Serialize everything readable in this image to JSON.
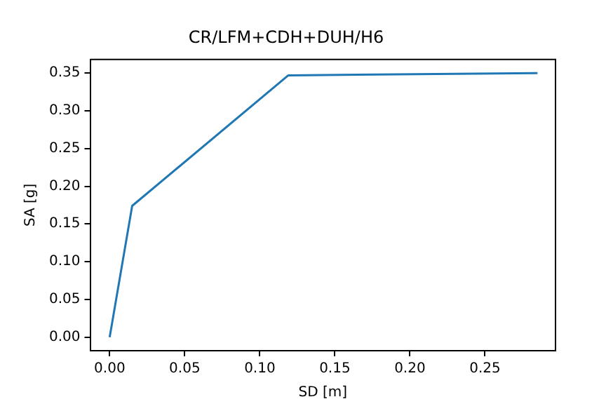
{
  "chart_data": {
    "type": "line",
    "title": "CR/LFM+CDH+DUH/H6",
    "xlabel": "SD [m]",
    "ylabel": "SA [g]",
    "x": [
      0,
      0.015,
      0.119,
      0.285
    ],
    "series": [
      {
        "color": "#1f77b4",
        "values": [
          0,
          0.174,
          0.347,
          0.35
        ]
      }
    ],
    "xlim": [
      -0.013,
      0.297
    ],
    "ylim": [
      -0.018,
      0.368
    ],
    "xticks": [
      {
        "value": 0,
        "label": "0.00"
      },
      {
        "value": 0.05,
        "label": "0.05"
      },
      {
        "value": 0.1,
        "label": "0.10"
      },
      {
        "value": 0.15,
        "label": "0.15"
      },
      {
        "value": 0.2,
        "label": "0.20"
      },
      {
        "value": 0.25,
        "label": "0.25"
      }
    ],
    "yticks": [
      {
        "value": 0,
        "label": "0.00"
      },
      {
        "value": 0.05,
        "label": "0.05"
      },
      {
        "value": 0.1,
        "label": "0.10"
      },
      {
        "value": 0.15,
        "label": "0.15"
      },
      {
        "value": 0.2,
        "label": "0.20"
      },
      {
        "value": 0.25,
        "label": "0.25"
      },
      {
        "value": 0.3,
        "label": "0.30"
      },
      {
        "value": 0.35,
        "label": "0.35"
      }
    ],
    "grid": false,
    "legend": false,
    "marker": "none",
    "line_style": "solid"
  }
}
